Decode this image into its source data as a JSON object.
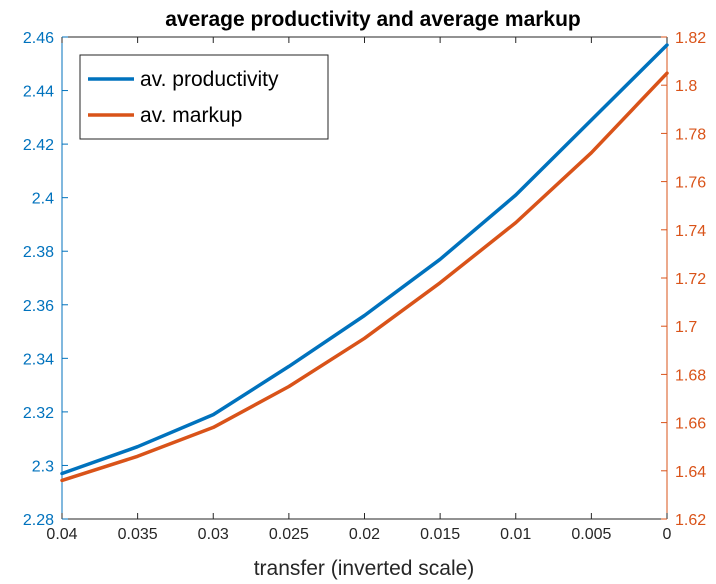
{
  "chart_data": {
    "type": "line",
    "title": "average productivity and average markup",
    "xlabel": "transfer (inverted scale)",
    "x_reversed": true,
    "xlim": [
      0,
      0.04
    ],
    "xticks": [
      "0.04",
      "0.035",
      "0.03",
      "0.025",
      "0.02",
      "0.015",
      "0.01",
      "0.005",
      "0"
    ],
    "xtick_values": [
      0.04,
      0.035,
      0.03,
      0.025,
      0.02,
      0.015,
      0.01,
      0.005,
      0
    ],
    "y_left": {
      "lim": [
        2.28,
        2.46
      ],
      "ticks": [
        "2.28",
        "2.3",
        "2.32",
        "2.34",
        "2.36",
        "2.38",
        "2.4",
        "2.42",
        "2.44",
        "2.46"
      ],
      "tick_values": [
        2.28,
        2.3,
        2.32,
        2.34,
        2.36,
        2.38,
        2.4,
        2.42,
        2.44,
        2.46
      ],
      "color": "#0072BD"
    },
    "y_right": {
      "lim": [
        1.62,
        1.82
      ],
      "ticks": [
        "1.62",
        "1.64",
        "1.66",
        "1.68",
        "1.7",
        "1.72",
        "1.74",
        "1.76",
        "1.78",
        "1.8",
        "1.82"
      ],
      "tick_values": [
        1.62,
        1.64,
        1.66,
        1.68,
        1.7,
        1.72,
        1.74,
        1.76,
        1.78,
        1.8,
        1.82
      ],
      "color": "#D95319"
    },
    "grid": false,
    "legend_position": "top-left",
    "series": [
      {
        "name": "av. productivity",
        "axis": "left",
        "color": "#0072BD",
        "x": [
          0.04,
          0.035,
          0.03,
          0.025,
          0.02,
          0.015,
          0.01,
          0.005,
          0
        ],
        "y": [
          2.297,
          2.307,
          2.319,
          2.337,
          2.356,
          2.377,
          2.401,
          2.429,
          2.457
        ]
      },
      {
        "name": "av. markup",
        "axis": "right",
        "color": "#D95319",
        "x": [
          0.04,
          0.035,
          0.03,
          0.025,
          0.02,
          0.015,
          0.01,
          0.005,
          0
        ],
        "y": [
          1.636,
          1.646,
          1.658,
          1.675,
          1.695,
          1.718,
          1.743,
          1.772,
          1.805
        ]
      }
    ]
  }
}
